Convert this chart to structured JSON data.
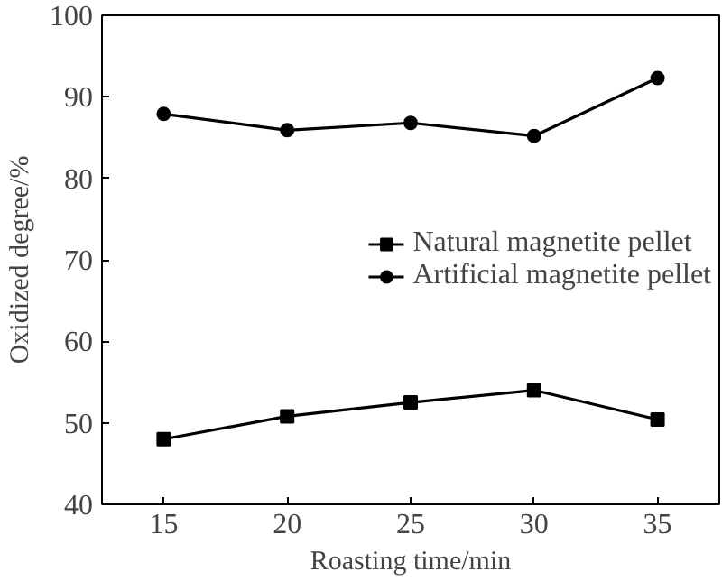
{
  "chart_data": {
    "type": "line",
    "xlabel": "Roasting time/min",
    "ylabel": "Oxidized degree/%",
    "x": [
      15,
      20,
      25,
      30,
      35
    ],
    "series": [
      {
        "name": "Natural magnetite pellet",
        "color": "#000000",
        "marker": "square",
        "values": [
          48.0,
          50.8,
          52.5,
          54.0,
          50.4
        ]
      },
      {
        "name": "Artificial magnetite pellet",
        "color": "#000000",
        "marker": "circle",
        "values": [
          87.9,
          85.9,
          86.8,
          85.2,
          92.3
        ]
      }
    ],
    "xlim": [
      12.5,
      37.5
    ],
    "xticks": [
      15,
      20,
      25,
      30,
      35
    ],
    "ylim": [
      40,
      100
    ],
    "yticks": [
      40,
      50,
      60,
      70,
      80,
      90,
      100
    ],
    "grid": false,
    "legend": "right",
    "line_style": "solid"
  }
}
